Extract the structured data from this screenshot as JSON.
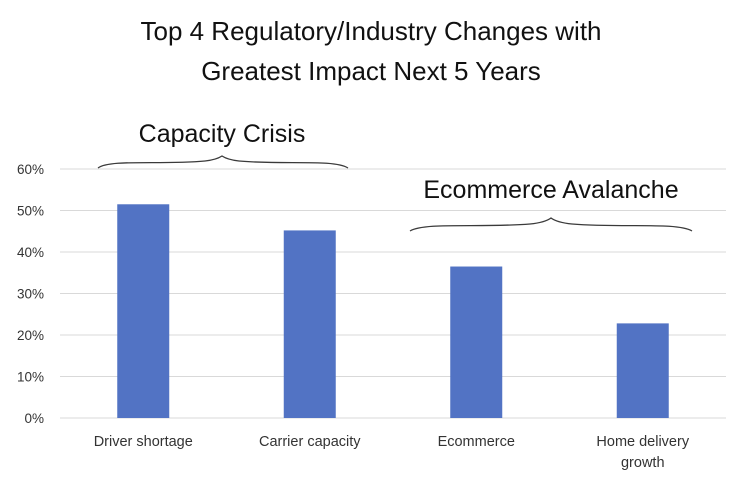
{
  "chart_data": {
    "type": "bar",
    "title": "Top 4 Regulatory/Industry Changes with Greatest Impact Next 5 Years",
    "title_lines": [
      "Top 4 Regulatory/Industry Changes with",
      "Greatest Impact Next 5 Years"
    ],
    "categories": [
      "Driver shortage",
      "Carrier capacity",
      "Ecommerce",
      "Home delivery growth"
    ],
    "category_lines": [
      [
        "Driver shortage"
      ],
      [
        "Carrier capacity"
      ],
      [
        "Ecommerce"
      ],
      [
        "Home delivery",
        "growth"
      ]
    ],
    "values": [
      0.515,
      0.452,
      0.365,
      0.228
    ],
    "ylim": [
      0,
      0.6
    ],
    "yticks": [
      0,
      0.1,
      0.2,
      0.3,
      0.4,
      0.5,
      0.6
    ],
    "ytick_labels": [
      "0%",
      "10%",
      "20%",
      "30%",
      "40%",
      "50%",
      "60%"
    ],
    "grid": true,
    "colors": {
      "bar": "#5273c4",
      "grid": "#d9d9d9"
    },
    "annotations": [
      {
        "text": "Capacity Crisis",
        "categories": [
          0,
          1
        ]
      },
      {
        "text": "Ecommerce Avalanche",
        "categories": [
          2,
          3
        ]
      }
    ]
  }
}
